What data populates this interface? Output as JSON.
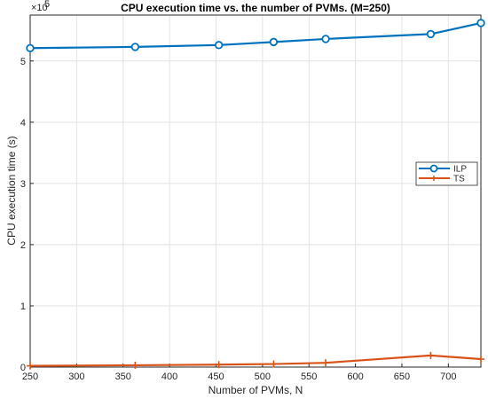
{
  "chart_data": {
    "type": "line",
    "title": "CPU execution time vs. the number of PVMs. (M=250)",
    "xlabel": "Number of PVMs, N",
    "ylabel": "CPU execution time (s)",
    "y_exponent_label": "×10",
    "y_exponent_power": "5",
    "xlim": [
      250,
      735
    ],
    "ylim": [
      0,
      5.75
    ],
    "xticks": [
      250,
      300,
      350,
      400,
      450,
      500,
      550,
      600,
      650,
      700
    ],
    "yticks": [
      0,
      1,
      2,
      3,
      4,
      5
    ],
    "grid": true,
    "legend_position": "right",
    "series": [
      {
        "name": "ILP",
        "color": "#0072BD",
        "marker": "circle",
        "x": [
          250,
          363,
          453,
          512,
          568,
          681,
          735
        ],
        "y": [
          5.21,
          5.23,
          5.26,
          5.31,
          5.36,
          5.44,
          5.62
        ]
      },
      {
        "name": "TS",
        "color": "#D95319",
        "marker": "plus",
        "x": [
          250,
          363,
          453,
          512,
          568,
          681,
          735
        ],
        "y": [
          0.02,
          0.03,
          0.04,
          0.05,
          0.07,
          0.19,
          0.13
        ]
      }
    ]
  }
}
